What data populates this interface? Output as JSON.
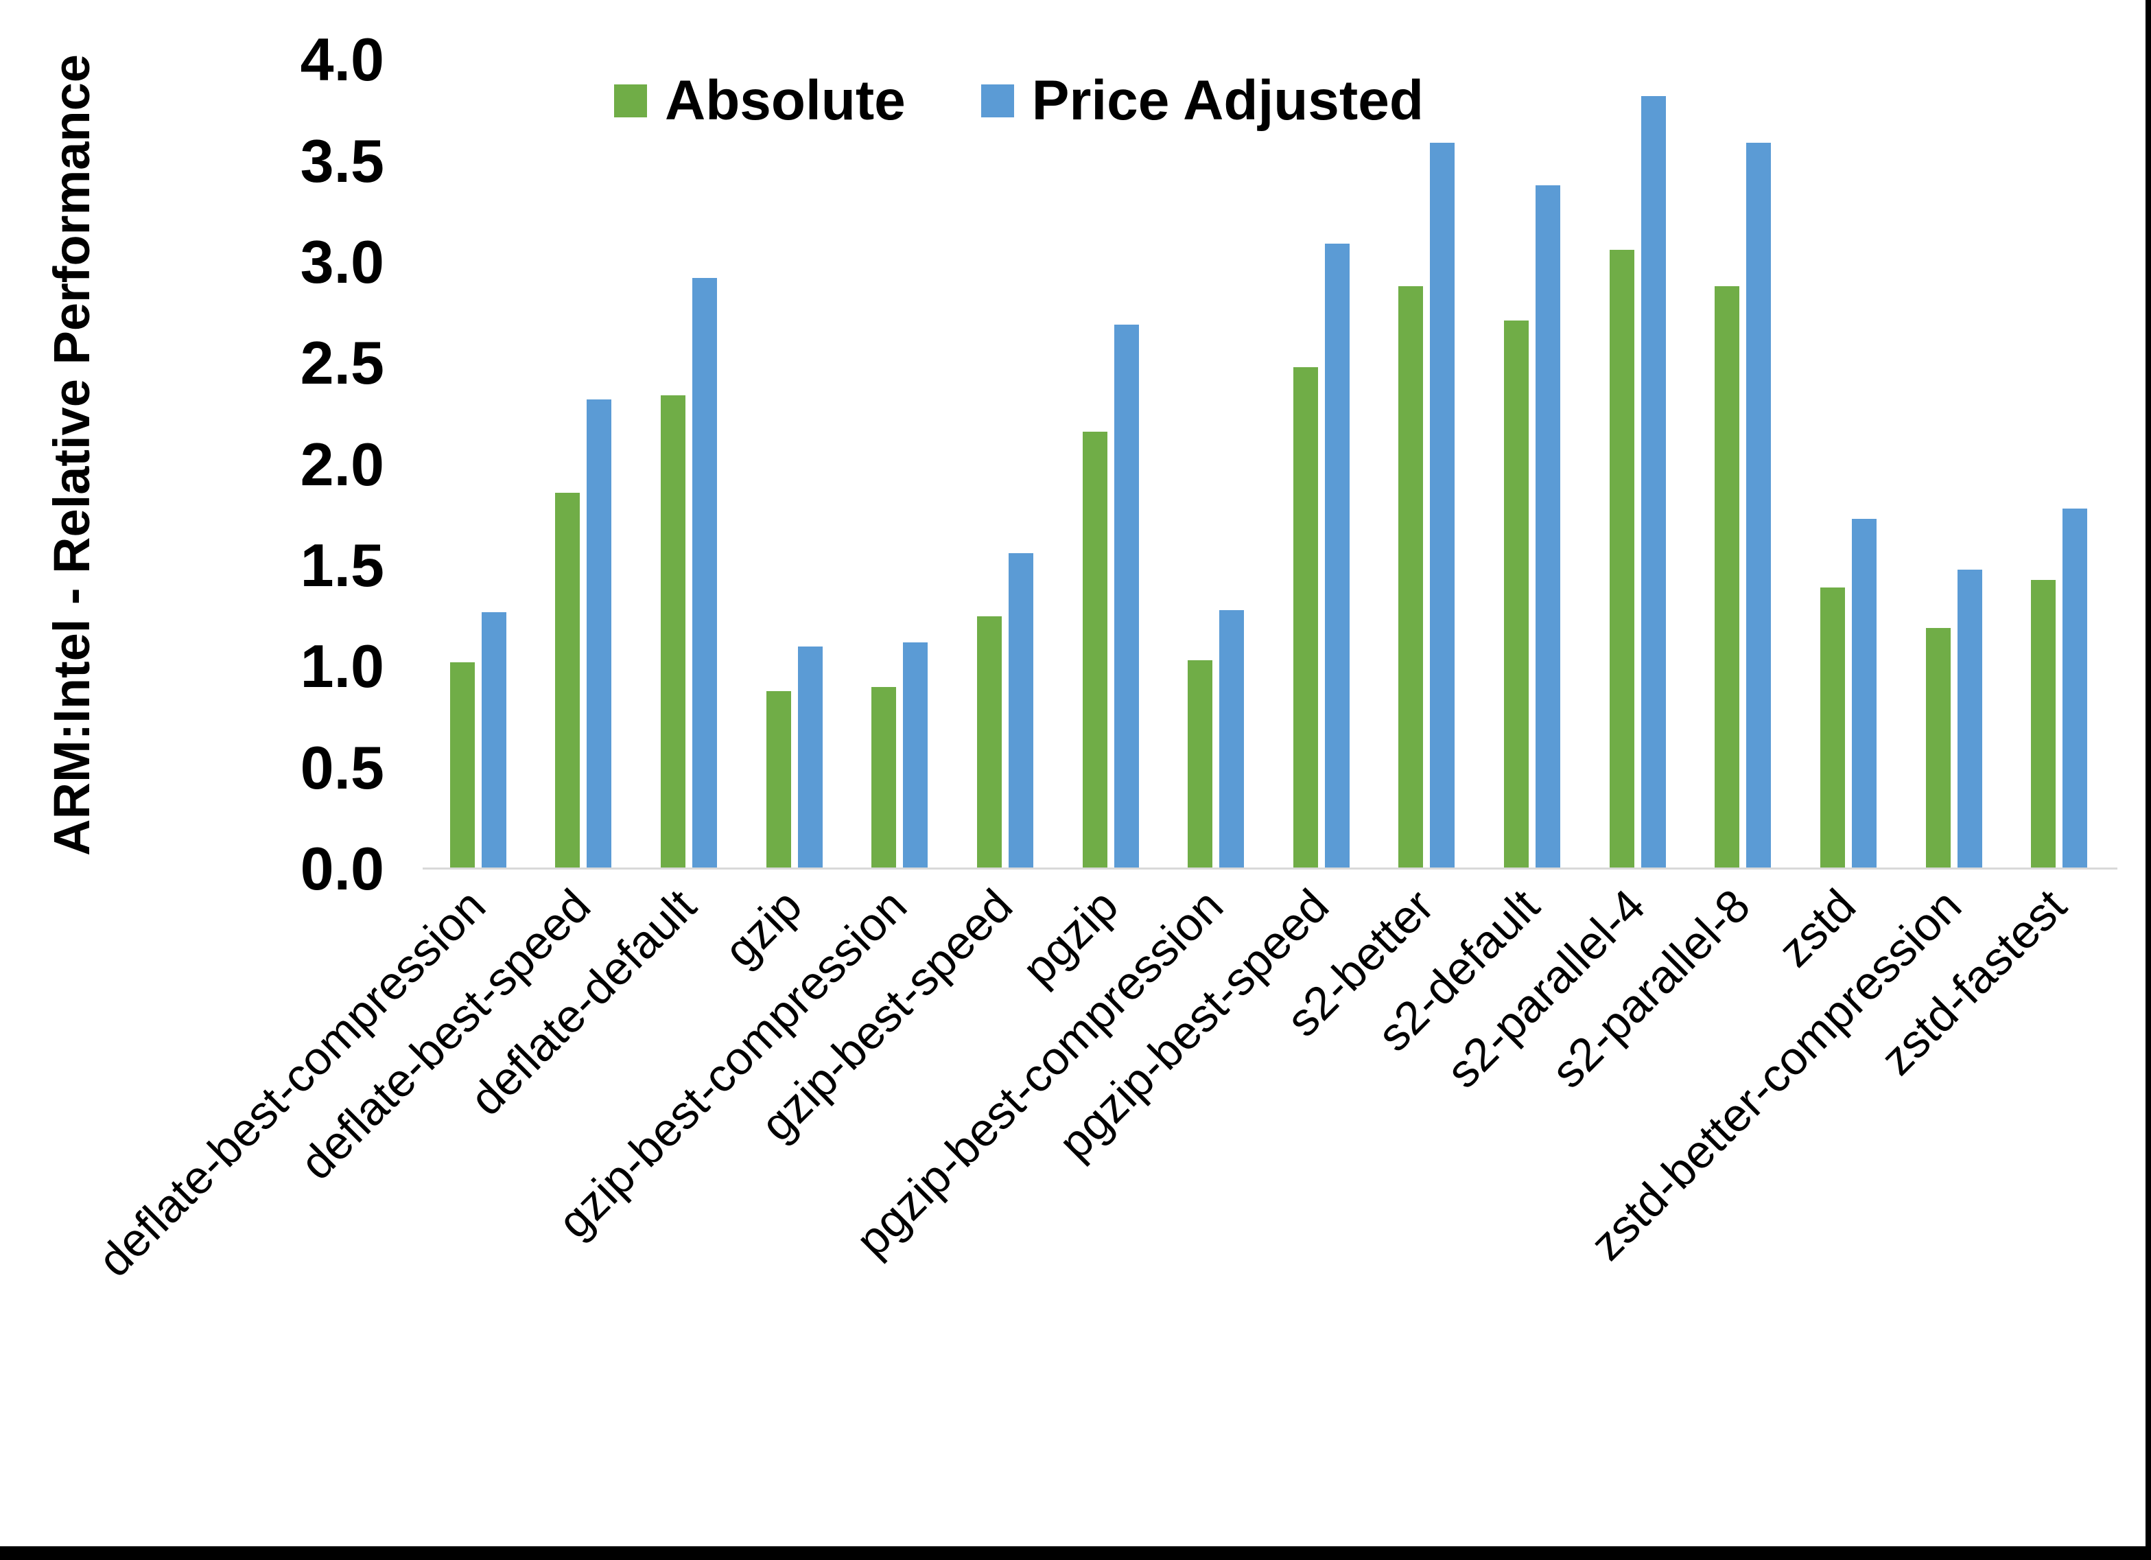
{
  "figure": {
    "background": "#ffffff",
    "border_right_color": "#000000",
    "border_bottom_color": "#000000",
    "axis_line_color": "#d9d9d9",
    "text_color": "#000000"
  },
  "chart_data": {
    "type": "bar",
    "title": "",
    "xlabel": "",
    "ylabel": "ARM:Intel - Relative Performance",
    "ylim": [
      0.0,
      4.0
    ],
    "ytick_step": 0.5,
    "ytick_labels": [
      "0.0",
      "0.5",
      "1.0",
      "1.5",
      "2.0",
      "2.5",
      "3.0",
      "3.5",
      "4.0"
    ],
    "grid": "off",
    "legend_position": "top-center",
    "categories": [
      "deflate-best-compression",
      "deflate-best-speed",
      "deflate-default",
      "gzip",
      "gzip-best-compression",
      "gzip-best-speed",
      "pgzip",
      "pgzip-best-compression",
      "pgzip-best-speed",
      "s2-better",
      "s2-default",
      "s2-parallel-4",
      "s2-parallel-8",
      "zstd",
      "zstd-better-compression",
      "zstd-fastest"
    ],
    "series": [
      {
        "name": "Absolute",
        "color": "#70AD47",
        "values": [
          1.02,
          1.86,
          2.34,
          0.88,
          0.9,
          1.25,
          2.16,
          1.03,
          2.48,
          2.88,
          2.71,
          3.06,
          2.88,
          1.39,
          1.19,
          1.43
        ]
      },
      {
        "name": "Price Adjusted",
        "color": "#5B9BD5",
        "values": [
          1.27,
          2.32,
          2.92,
          1.1,
          1.12,
          1.56,
          2.69,
          1.28,
          3.09,
          3.59,
          3.38,
          3.82,
          3.59,
          1.73,
          1.48,
          1.78
        ]
      }
    ]
  }
}
